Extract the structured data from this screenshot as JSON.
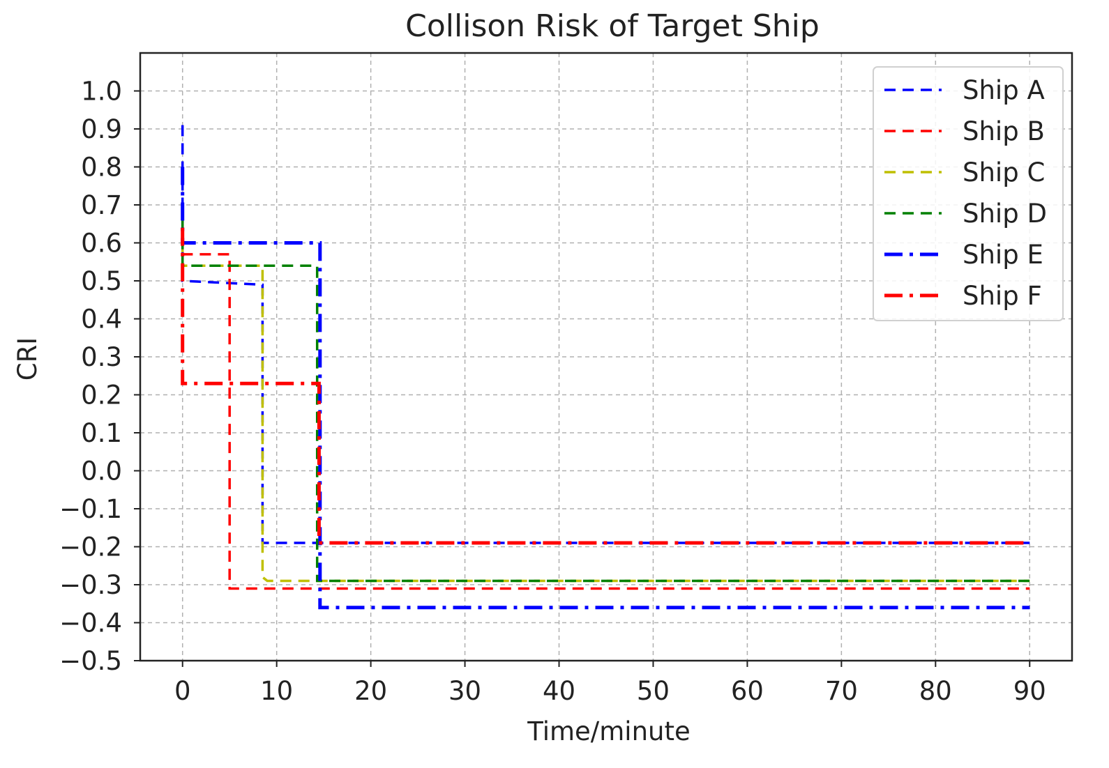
{
  "chart_data": {
    "type": "line",
    "title": "Collison Risk of Target Ship",
    "xlabel": "Time/minute",
    "ylabel": "CRI",
    "xlim": [
      -4.5,
      94.5
    ],
    "ylim": [
      -0.5,
      1.1
    ],
    "xticks": [
      0,
      10,
      20,
      30,
      40,
      50,
      60,
      70,
      80,
      90
    ],
    "xtick_labels": [
      "0",
      "10",
      "20",
      "30",
      "40",
      "50",
      "60",
      "70",
      "80",
      "90"
    ],
    "yticks": [
      1.0,
      0.9,
      0.8,
      0.7,
      0.6,
      0.5,
      0.4,
      0.3,
      0.2,
      0.1,
      0.0,
      -0.1,
      -0.2,
      -0.3,
      -0.4,
      -0.5
    ],
    "ytick_labels": [
      "1.0",
      "0.9",
      "0.8",
      "0.7",
      "0.6",
      "0.5",
      "0.4",
      "0.3",
      "0.2",
      "0.1",
      "0.0",
      "−0.1",
      "−0.2",
      "−0.3",
      "−0.4",
      "−0.5"
    ],
    "grid": true,
    "legend_position": "top-right",
    "series": [
      {
        "name": "Ship A",
        "color": "#0000ff",
        "style": "dashed",
        "x": [
          0,
          0,
          8.5,
          8.5,
          90
        ],
        "y": [
          0.91,
          0.5,
          0.49,
          -0.19,
          -0.19
        ]
      },
      {
        "name": "Ship B",
        "color": "#ff0000",
        "style": "dashed",
        "x": [
          0,
          0,
          5,
          5,
          90
        ],
        "y": [
          0.62,
          0.57,
          0.57,
          -0.31,
          -0.31
        ]
      },
      {
        "name": "Ship C",
        "color": "#bfbf00",
        "style": "dashed",
        "x": [
          0,
          0,
          8.5,
          8.5,
          9,
          90
        ],
        "y": [
          0.7,
          0.54,
          0.54,
          -0.28,
          -0.29,
          -0.29
        ]
      },
      {
        "name": "Ship D",
        "color": "#008000",
        "style": "dashed",
        "x": [
          0,
          0,
          14.3,
          14.3,
          90
        ],
        "y": [
          0.66,
          0.54,
          0.54,
          -0.29,
          -0.29
        ]
      },
      {
        "name": "Ship E",
        "color": "#0000ff",
        "style": "dashdot",
        "x": [
          0,
          0,
          14.6,
          14.6,
          90
        ],
        "y": [
          0.8,
          0.6,
          0.6,
          -0.36,
          -0.36
        ]
      },
      {
        "name": "Ship F",
        "color": "#ff0000",
        "style": "dashdot",
        "x": [
          0,
          0,
          14.5,
          14.5,
          90
        ],
        "y": [
          0.64,
          0.23,
          0.23,
          -0.19,
          -0.19
        ]
      }
    ]
  }
}
